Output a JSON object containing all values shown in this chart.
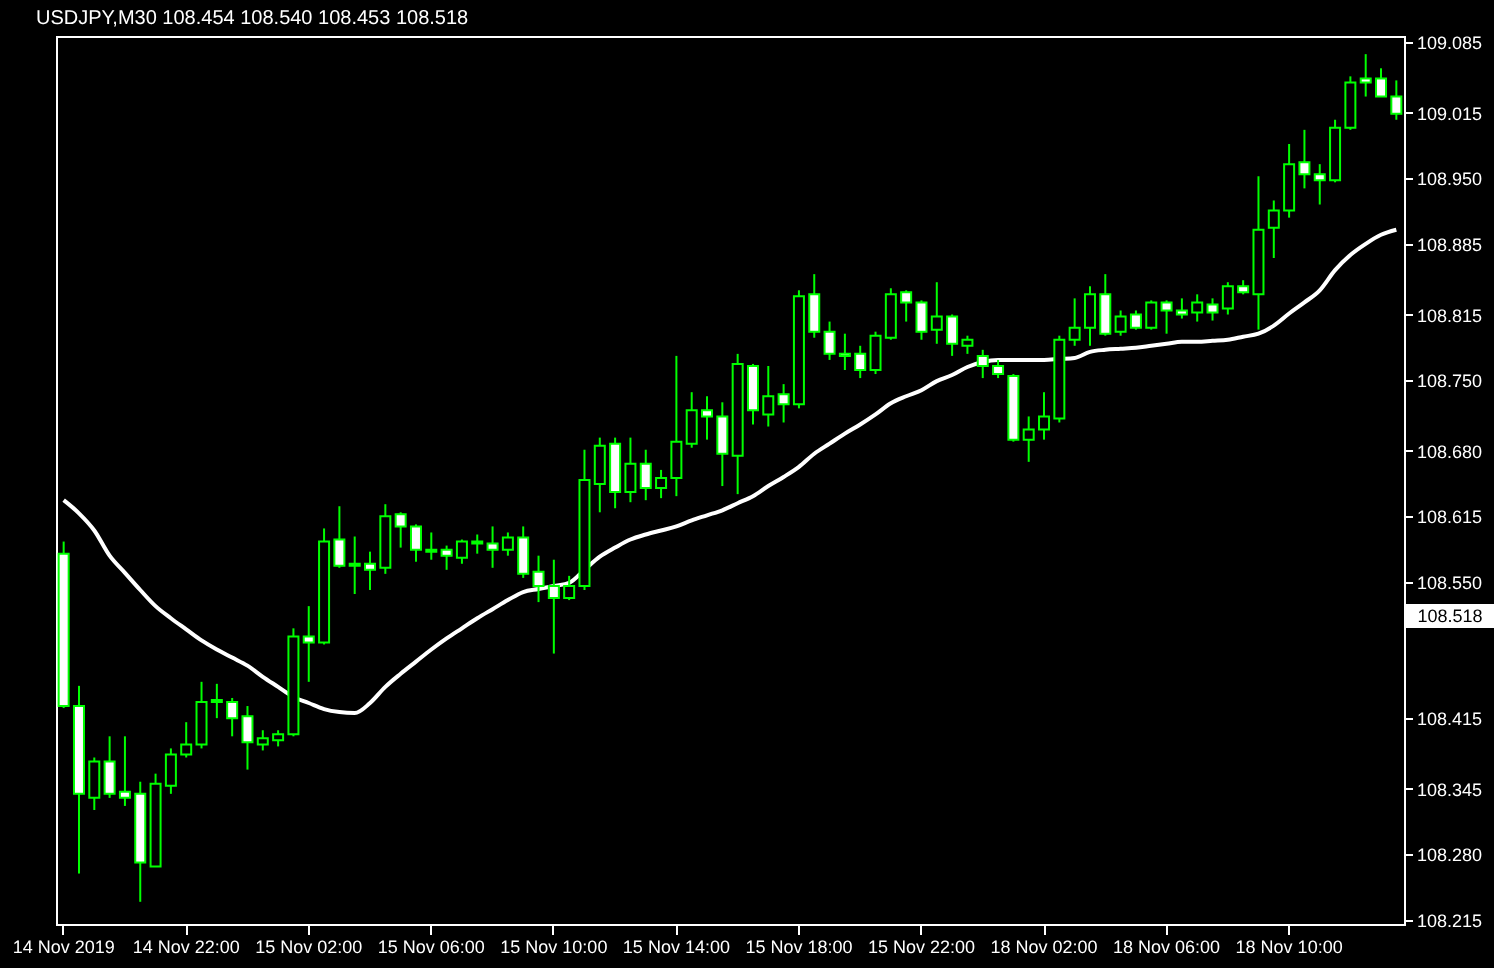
{
  "chart_data": {
    "type": "candlestick",
    "title": "USDJPY,M30  108.454 108.540 108.453 108.518",
    "color": "#00ff00",
    "categories": [
      "14 Nov 2019",
      null,
      null,
      null,
      null,
      null,
      null,
      null,
      "14 Nov 22:00",
      null,
      null,
      null,
      null,
      null,
      null,
      null,
      "15 Nov 02:00",
      null,
      null,
      null,
      null,
      null,
      null,
      null,
      "15 Nov 06:00",
      null,
      null,
      null,
      null,
      null,
      null,
      null,
      "15 Nov 10:00",
      null,
      null,
      null,
      null,
      null,
      null,
      null,
      "15 Nov 14:00",
      null,
      null,
      null,
      null,
      null,
      null,
      null,
      "15 Nov 18:00",
      null,
      null,
      null,
      null,
      null,
      null,
      null,
      "15 Nov 22:00",
      null,
      null,
      null,
      null,
      null,
      null,
      null,
      "18 Nov 02:00",
      null,
      null,
      null,
      null,
      null,
      null,
      null,
      "18 Nov 06:00",
      null,
      null,
      null,
      null,
      null,
      null,
      null,
      "18 Nov 10:00",
      null,
      null,
      null,
      null,
      null,
      null,
      null
    ],
    "ohlc": [
      [
        108.578,
        108.59,
        108.425,
        108.427
      ],
      [
        108.427,
        108.447,
        108.261,
        108.34
      ],
      [
        108.336,
        108.376,
        108.324,
        108.372
      ],
      [
        108.372,
        108.397,
        108.336,
        108.34
      ],
      [
        108.342,
        108.397,
        108.328,
        108.336
      ],
      [
        108.34,
        108.352,
        108.233,
        108.272
      ],
      [
        108.268,
        108.36,
        108.268,
        108.35
      ],
      [
        108.348,
        108.385,
        108.34,
        108.379
      ],
      [
        108.379,
        108.411,
        108.376,
        108.389
      ],
      [
        108.389,
        108.451,
        108.385,
        108.431
      ],
      [
        108.433,
        108.449,
        108.415,
        108.431
      ],
      [
        108.431,
        108.435,
        108.397,
        108.415
      ],
      [
        108.417,
        108.427,
        108.364,
        108.391
      ],
      [
        108.389,
        108.403,
        108.383,
        108.395
      ],
      [
        108.393,
        108.403,
        108.387,
        108.399
      ],
      [
        108.399,
        108.504,
        108.397,
        108.496
      ],
      [
        108.496,
        108.526,
        108.451,
        108.49
      ],
      [
        108.49,
        108.603,
        108.488,
        108.59
      ],
      [
        108.592,
        108.625,
        108.564,
        108.566
      ],
      [
        108.568,
        108.595,
        108.538,
        108.566
      ],
      [
        108.568,
        108.58,
        108.542,
        108.562
      ],
      [
        108.564,
        108.627,
        108.558,
        108.615
      ],
      [
        108.617,
        108.619,
        108.584,
        108.605
      ],
      [
        108.605,
        108.607,
        108.57,
        108.582
      ],
      [
        108.582,
        108.599,
        108.572,
        108.58
      ],
      [
        108.582,
        108.586,
        108.562,
        108.576
      ],
      [
        108.574,
        108.592,
        108.568,
        108.59
      ],
      [
        108.59,
        108.597,
        108.578,
        108.588
      ],
      [
        108.588,
        108.605,
        108.564,
        108.582
      ],
      [
        108.582,
        108.599,
        108.576,
        108.594
      ],
      [
        108.594,
        108.605,
        108.554,
        108.558
      ],
      [
        108.56,
        108.576,
        108.53,
        108.546
      ],
      [
        108.546,
        108.572,
        108.479,
        108.534
      ],
      [
        108.534,
        108.556,
        108.532,
        108.546
      ],
      [
        108.546,
        108.681,
        108.542,
        108.651
      ],
      [
        108.647,
        108.693,
        108.619,
        108.685
      ],
      [
        108.687,
        108.693,
        108.623,
        108.639
      ],
      [
        108.639,
        108.693,
        108.629,
        108.667
      ],
      [
        108.667,
        108.681,
        108.631,
        108.643
      ],
      [
        108.643,
        108.661,
        108.633,
        108.653
      ],
      [
        108.653,
        108.774,
        108.635,
        108.689
      ],
      [
        108.687,
        108.738,
        108.683,
        108.72
      ],
      [
        108.72,
        108.734,
        108.691,
        108.714
      ],
      [
        108.714,
        108.728,
        108.645,
        108.677
      ],
      [
        108.675,
        108.776,
        108.637,
        108.766
      ],
      [
        108.764,
        108.766,
        108.706,
        108.72
      ],
      [
        108.716,
        108.764,
        108.704,
        108.734
      ],
      [
        108.736,
        108.746,
        108.708,
        108.726
      ],
      [
        108.726,
        108.839,
        108.722,
        108.833
      ],
      [
        108.835,
        108.855,
        108.792,
        108.798
      ],
      [
        108.798,
        108.808,
        108.77,
        108.776
      ],
      [
        108.776,
        108.796,
        108.76,
        108.774
      ],
      [
        108.776,
        108.784,
        108.752,
        108.76
      ],
      [
        108.76,
        108.798,
        108.756,
        108.794
      ],
      [
        108.792,
        108.841,
        108.79,
        108.835
      ],
      [
        108.837,
        108.839,
        108.808,
        108.827
      ],
      [
        108.827,
        108.829,
        108.79,
        108.798
      ],
      [
        108.8,
        108.847,
        108.786,
        108.813
      ],
      [
        108.813,
        108.815,
        108.774,
        108.786
      ],
      [
        108.784,
        108.794,
        108.776,
        108.79
      ],
      [
        108.774,
        108.78,
        108.752,
        108.764
      ],
      [
        108.764,
        108.77,
        108.752,
        108.756
      ],
      [
        108.754,
        108.756,
        108.689,
        108.691
      ],
      [
        108.691,
        108.714,
        108.669,
        108.701
      ],
      [
        108.701,
        108.738,
        108.691,
        108.714
      ],
      [
        108.712,
        108.794,
        108.708,
        108.79
      ],
      [
        108.79,
        108.831,
        108.784,
        108.802
      ],
      [
        108.802,
        108.843,
        108.784,
        108.835
      ],
      [
        108.835,
        108.855,
        108.794,
        108.796
      ],
      [
        108.798,
        108.819,
        108.794,
        108.813
      ],
      [
        108.815,
        108.819,
        108.8,
        108.802
      ],
      [
        108.802,
        108.829,
        108.8,
        108.827
      ],
      [
        108.827,
        108.829,
        108.796,
        108.819
      ],
      [
        108.819,
        108.831,
        108.811,
        108.815
      ],
      [
        108.817,
        108.835,
        108.808,
        108.827
      ],
      [
        108.825,
        108.831,
        108.809,
        108.817
      ],
      [
        108.821,
        108.847,
        108.815,
        108.843
      ],
      [
        108.843,
        108.849,
        108.835,
        108.837
      ],
      [
        108.835,
        108.952,
        108.8,
        108.899
      ],
      [
        108.901,
        108.928,
        108.871,
        108.918
      ],
      [
        108.918,
        108.984,
        108.911,
        108.964
      ],
      [
        108.966,
        108.998,
        108.94,
        108.954
      ],
      [
        108.954,
        108.964,
        108.924,
        108.948
      ],
      [
        108.948,
        109.008,
        108.946,
        109.0
      ],
      [
        109.0,
        109.051,
        108.998,
        109.045
      ],
      [
        109.049,
        109.073,
        109.031,
        109.045
      ],
      [
        109.049,
        109.059,
        109.031,
        109.031
      ],
      [
        109.031,
        109.047,
        109.008,
        109.014
      ]
    ],
    "series": [
      {
        "type": "line",
        "color": "#ffffff",
        "values": [
          108.631,
          108.618,
          108.601,
          108.576,
          108.559,
          108.542,
          108.526,
          108.514,
          108.503,
          108.492,
          108.483,
          108.475,
          108.467,
          108.456,
          108.446,
          108.436,
          108.43,
          108.424,
          108.421,
          108.42,
          108.43,
          108.446,
          108.459,
          108.471,
          108.483,
          108.494,
          108.504,
          108.514,
          108.523,
          108.532,
          108.54,
          108.543,
          108.546,
          108.549,
          108.562,
          108.575,
          108.584,
          108.592,
          108.597,
          108.601,
          108.605,
          108.611,
          108.616,
          108.621,
          108.628,
          108.635,
          108.645,
          108.654,
          108.664,
          108.677,
          108.687,
          108.697,
          108.706,
          108.716,
          108.727,
          108.734,
          108.74,
          108.749,
          108.755,
          108.763,
          108.768,
          108.77,
          108.77,
          108.77,
          108.77,
          108.771,
          108.772,
          108.778,
          108.78,
          108.781,
          108.782,
          108.784,
          108.786,
          108.788,
          108.788,
          108.789,
          108.79,
          108.793,
          108.796,
          108.804,
          108.816,
          108.827,
          108.839,
          108.859,
          108.874,
          108.885,
          108.894,
          108.899
        ]
      }
    ],
    "ylim": [
      108.211,
      109.091
    ],
    "yticks": [
      {
        "value": 109.085,
        "label": "109.085"
      },
      {
        "value": 109.015,
        "label": "109.015"
      },
      {
        "value": 108.95,
        "label": "108.950"
      },
      {
        "value": 108.885,
        "label": "108.885"
      },
      {
        "value": 108.815,
        "label": "108.815"
      },
      {
        "value": 108.75,
        "label": "108.750"
      },
      {
        "value": 108.68,
        "label": "108.680"
      },
      {
        "value": 108.615,
        "label": "108.615"
      },
      {
        "value": 108.55,
        "label": "108.550"
      },
      {
        "value": 108.415,
        "label": "108.415"
      },
      {
        "value": 108.345,
        "label": "108.345"
      },
      {
        "value": 108.28,
        "label": "108.280"
      },
      {
        "value": 108.215,
        "label": "108.215"
      }
    ],
    "annotations": [
      "108.518"
    ]
  }
}
